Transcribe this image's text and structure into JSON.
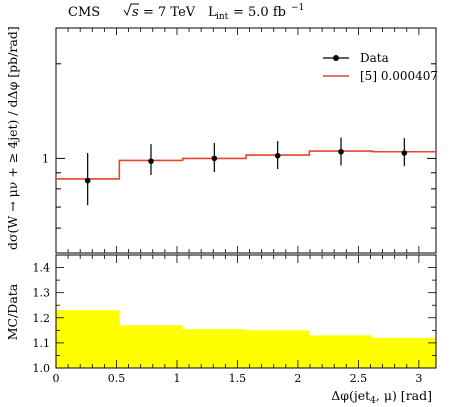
{
  "header": {
    "experiment": "CMS",
    "sqrt_s": "s",
    "energy": "= 7 TeV",
    "lumi_symbol": "L",
    "lumi_sub": "int",
    "lumi_value": "= 5.0 fb",
    "lumi_exp": "−1"
  },
  "chart_data": [
    {
      "type": "line",
      "panel": "main",
      "ylabel": "dσ(W → μν + ≥ 4jet) / dΔφ [pb/rad]",
      "yscale": "log",
      "ylim": [
        0.5,
        2.6
      ],
      "xlim": [
        0,
        3.1416
      ],
      "y_tick_labels": [
        "1"
      ],
      "bin_edges": [
        0,
        0.5236,
        1.0472,
        1.5708,
        2.0944,
        2.618,
        3.1416
      ],
      "series": [
        {
          "name": "Data",
          "style": "points-with-errors",
          "x": [
            0.2618,
            0.7854,
            1.309,
            1.8326,
            2.3562,
            2.8798
          ],
          "y": [
            0.85,
            0.98,
            1.0,
            1.02,
            1.05,
            1.04
          ],
          "err_low": [
            0.71,
            0.885,
            0.905,
            0.925,
            0.95,
            0.945
          ],
          "err_high": [
            1.04,
            1.11,
            1.12,
            1.135,
            1.165,
            1.16
          ]
        },
        {
          "name": "[5] 0.000407",
          "style": "step",
          "color": "#e8452a",
          "values": [
            0.86,
            0.985,
            1.0,
            1.025,
            1.055,
            1.05
          ]
        }
      ],
      "legend": [
        "Data",
        "[5] 0.000407"
      ],
      "legend_position": "top-right"
    },
    {
      "type": "area",
      "panel": "ratio",
      "ylabel": "MC/Data",
      "xlabel": "Δφ(jet4, μ) [rad]",
      "xlabel_main": "Δφ(jet",
      "xlabel_sub": "4",
      "xlabel_rest": ", μ) [rad]",
      "xlim": [
        0,
        3.1416
      ],
      "ylim": [
        1.0,
        1.45
      ],
      "y_ticks": [
        1.0,
        1.1,
        1.2,
        1.3,
        1.4
      ],
      "y_tick_labels": [
        "1.0",
        "1.1",
        "1.2",
        "1.3",
        "1.4"
      ],
      "x_ticks": [
        0,
        0.5,
        1.0,
        1.5,
        2.0,
        2.5,
        3.0
      ],
      "x_tick_labels": [
        "0",
        "0.5",
        "1",
        "1.5",
        "2",
        "2.5",
        "3"
      ],
      "bin_edges": [
        0,
        0.5236,
        1.0472,
        1.5708,
        2.0944,
        2.618,
        3.1416
      ],
      "values": [
        1.23,
        1.17,
        1.155,
        1.15,
        1.13,
        1.12
      ],
      "fill_color": "#ffff00"
    }
  ]
}
